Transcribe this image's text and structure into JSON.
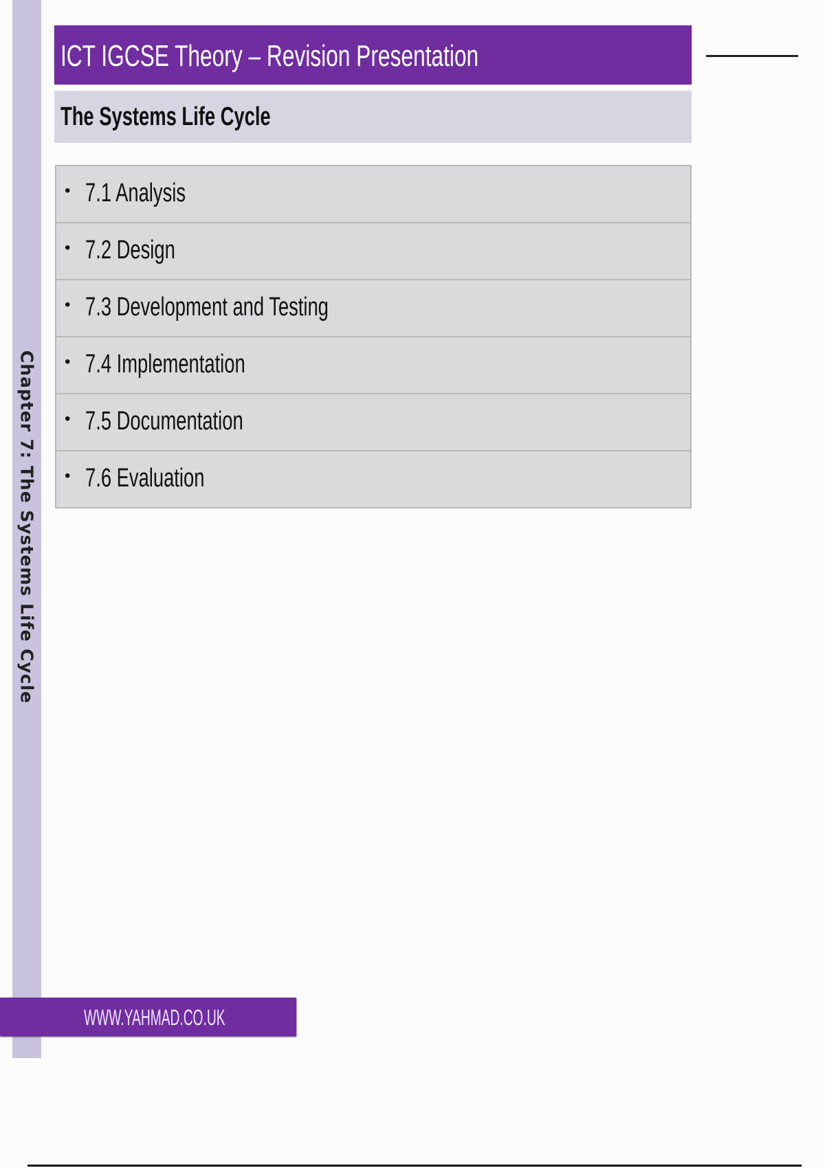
{
  "sidebar": {
    "chapter_label": "Chapter 7: The Systems Life Cycle"
  },
  "header": {
    "title": "ICT IGCSE Theory – Revision Presentation",
    "subtitle": "The Systems Life Cycle"
  },
  "topics": [
    {
      "label": "7.1 Analysis"
    },
    {
      "label": "7.2 Design"
    },
    {
      "label": "7.3 Development and Testing"
    },
    {
      "label": "7.4 Implementation"
    },
    {
      "label": "7.5 Documentation"
    },
    {
      "label": "7.6 Evaluation"
    }
  ],
  "footer": {
    "website": "WWW.YAHMAD.CO.UK"
  },
  "colors": {
    "accent": "#6f2da0",
    "strip": "#cac3de",
    "subtitle_bg": "#d8d5e3",
    "row_bg": "#dad9db"
  }
}
